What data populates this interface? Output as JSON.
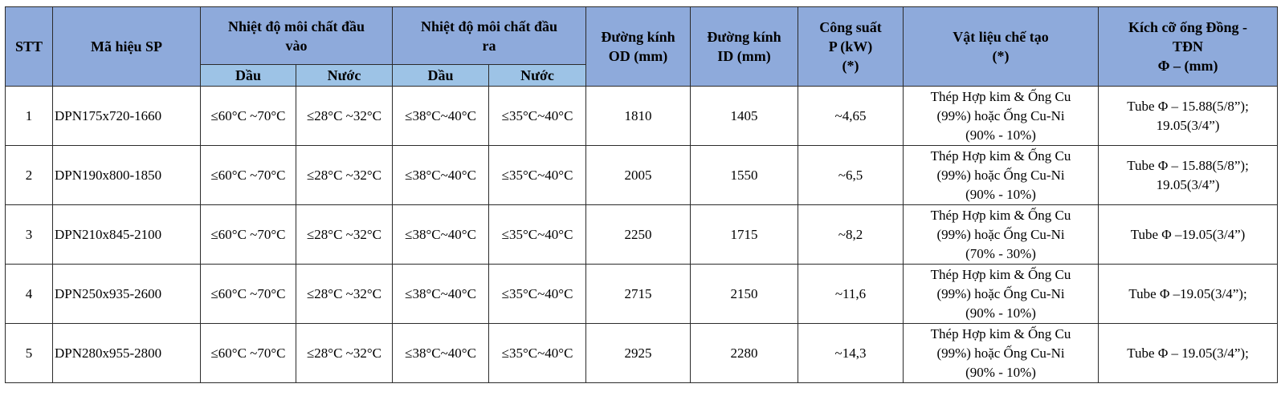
{
  "table": {
    "header": {
      "top": [
        [
          "STT"
        ],
        [
          "Mã hiệu SP"
        ],
        [
          "Nhiệt độ môi chất đầu",
          "vào"
        ],
        [
          "Nhiệt độ môi chất đầu",
          "ra"
        ],
        [
          "Đường kính",
          "OD (mm)"
        ],
        [
          "Đường kính",
          "ID (mm)"
        ],
        [
          "Công suất",
          "P (kW)",
          "(*)"
        ],
        [
          "Vật liệu chế tạo",
          "(*)"
        ],
        [
          "Kích cỡ ống Đồng -",
          "TĐN",
          "Φ – (mm)"
        ]
      ],
      "sub": [
        "Dầu",
        "Nước",
        "Dầu",
        "Nước"
      ]
    },
    "rows": [
      [
        "1",
        "DPN175x720-1660",
        "≤60°C ~70°C",
        "≤28°C ~32°C",
        "≤38°C~40°C",
        "≤35°C~40°C",
        "1810",
        "1405",
        "~4,65",
        [
          "Thép Hợp kim & Ống Cu",
          "(99%) hoặc Ống Cu-Ni",
          "(90% - 10%)"
        ],
        [
          "Tube Φ – 15.88(5/8”);",
          "19.05(3/4”)"
        ]
      ],
      [
        "2",
        "DPN190x800-1850",
        "≤60°C ~70°C",
        "≤28°C ~32°C",
        "≤38°C~40°C",
        "≤35°C~40°C",
        "2005",
        "1550",
        "~6,5",
        [
          "Thép Hợp kim & Ống Cu",
          "(99%) hoặc Ống Cu-Ni",
          "(90% - 10%)"
        ],
        [
          "Tube Φ – 15.88(5/8”);",
          "19.05(3/4”)"
        ]
      ],
      [
        "3",
        "DPN210x845-2100",
        "≤60°C ~70°C",
        "≤28°C ~32°C",
        "≤38°C~40°C",
        "≤35°C~40°C",
        "2250",
        "1715",
        "~8,2",
        [
          "Thép Hợp kim & Ống Cu",
          "(99%) hoặc Ống Cu-Ni",
          "(70% - 30%)"
        ],
        [
          "Tube Φ –19.05(3/4”)"
        ]
      ],
      [
        "4",
        "DPN250x935-2600",
        "≤60°C ~70°C",
        "≤28°C ~32°C",
        "≤38°C~40°C",
        "≤35°C~40°C",
        "2715",
        "2150",
        "~11,6",
        [
          "Thép Hợp kim & Ống Cu",
          "(99%) hoặc Ống Cu-Ni",
          "(90% - 10%)"
        ],
        [
          "Tube Φ –19.05(3/4”);"
        ]
      ],
      [
        "5",
        "DPN280x955-2800",
        "≤60°C ~70°C",
        "≤28°C ~32°C",
        "≤38°C~40°C",
        "≤35°C~40°C",
        "2925",
        "2280",
        "~14,3",
        [
          "Thép Hợp kim & Ống Cu",
          "(99%) hoặc Ống Cu-Ni",
          "(90% - 10%)"
        ],
        [
          "Tube Φ – 19.05(3/4”);"
        ]
      ]
    ]
  }
}
